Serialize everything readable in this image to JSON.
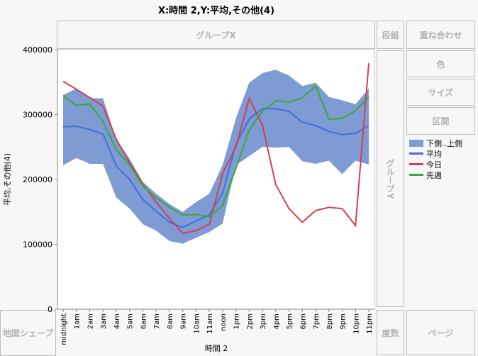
{
  "title": "X:時間 2,Y:平均,その他(4)",
  "zones": {
    "group_x": "グループX",
    "wrap": "段組",
    "overlay": "重ね合わせ",
    "group_y": "グループY",
    "color": "色",
    "size": "サイズ",
    "interval": "区間",
    "map_shape": "地図シェープ",
    "freq": "度数",
    "page": "ページ"
  },
  "colors": {
    "band": "#7f9bd4",
    "mean": "#3f6fdc",
    "today": "#d2404f",
    "last_week": "#38a838"
  },
  "chart_data": {
    "type": "line",
    "xlabel": "時間 2",
    "ylabel": "平均,その他(4)",
    "ylim": [
      0,
      400000
    ],
    "yticks": [
      "0",
      "100000",
      "200000",
      "300000",
      "400000"
    ],
    "grid": false,
    "legend_position": "right",
    "categories": [
      "midnight",
      "1am",
      "2am",
      "3am",
      "4am",
      "5am",
      "6am",
      "7am",
      "8am",
      "9am",
      "10am",
      "11am",
      "noon",
      "1pm",
      "2pm",
      "3pm",
      "4pm",
      "5pm",
      "6pm",
      "7pm",
      "8pm",
      "9pm",
      "10pm",
      "11pm"
    ],
    "band": {
      "name": "下側..上側",
      "lower": [
        222000,
        233000,
        224000,
        224000,
        172000,
        155000,
        131000,
        121000,
        105000,
        101000,
        110000,
        119000,
        132000,
        222000,
        236000,
        250000,
        249000,
        250000,
        228000,
        224000,
        229000,
        208000,
        229000,
        223000
      ],
      "upper": [
        330000,
        340000,
        325000,
        325000,
        262000,
        232000,
        196000,
        178000,
        162000,
        150000,
        165000,
        178000,
        222000,
        294000,
        349000,
        364000,
        369000,
        360000,
        344000,
        349000,
        327000,
        322000,
        316000,
        340000
      ]
    },
    "series": [
      {
        "name": "平均",
        "values": [
          281000,
          282000,
          277000,
          270000,
          221000,
          200000,
          169000,
          151000,
          134000,
          126000,
          136000,
          145000,
          179000,
          254000,
          293000,
          309000,
          309000,
          305000,
          288000,
          283000,
          274000,
          269000,
          271000,
          283000
        ]
      },
      {
        "name": "今日",
        "values": [
          351000,
          339000,
          326000,
          313000,
          262000,
          226000,
          193000,
          165000,
          140000,
          117000,
          121000,
          131000,
          209000,
          250000,
          325000,
          283000,
          192000,
          155000,
          134000,
          152000,
          157000,
          155000,
          129000,
          379000
        ]
      },
      {
        "name": "先週",
        "values": [
          329000,
          314000,
          316000,
          289000,
          246000,
          222000,
          190000,
          172000,
          157000,
          145000,
          146000,
          142000,
          160000,
          217000,
          276000,
          305000,
          321000,
          319000,
          326000,
          344000,
          293000,
          294000,
          306000,
          327000
        ]
      }
    ]
  }
}
